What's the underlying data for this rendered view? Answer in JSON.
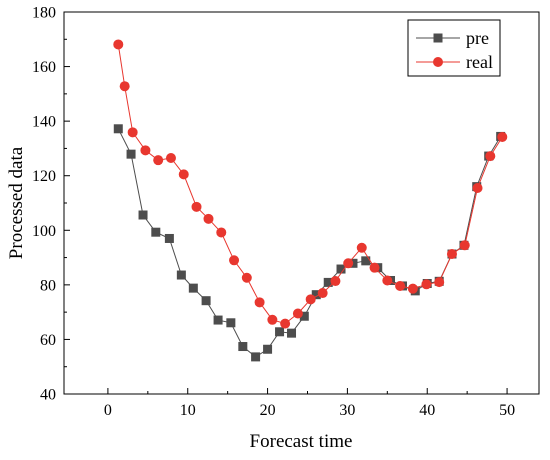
{
  "chart_data": {
    "type": "line",
    "xlabel": "Forecast time",
    "ylabel": "Processed data",
    "xlim": [
      -5.5,
      54
    ],
    "ylim": [
      40,
      180
    ],
    "x_ticks": [
      0,
      10,
      20,
      30,
      40,
      50
    ],
    "y_ticks": [
      40,
      60,
      80,
      100,
      120,
      140,
      160,
      180
    ],
    "grid": false,
    "legend_position": "top-right",
    "series": [
      {
        "name": "pre",
        "color": "#4d4d4d",
        "marker": "square",
        "x": [
          1.3,
          2.9,
          4.4,
          6.0,
          7.7,
          9.2,
          10.7,
          12.3,
          13.8,
          15.4,
          16.9,
          18.5,
          20.0,
          21.5,
          23.0,
          24.6,
          26.1,
          27.6,
          29.2,
          30.7,
          32.3,
          33.8,
          35.4,
          36.9,
          38.5,
          40.0,
          41.5,
          43.1,
          44.6,
          46.2,
          47.7,
          49.2
        ],
        "values": [
          137.2,
          127.9,
          105.6,
          99.3,
          97.0,
          83.6,
          78.8,
          74.2,
          67.1,
          66.1,
          57.4,
          53.6,
          56.4,
          62.8,
          62.3,
          68.5,
          76.4,
          80.9,
          85.8,
          87.9,
          88.8,
          86.3,
          81.6,
          79.6,
          77.8,
          80.5,
          81.3,
          91.3,
          94.5,
          116.0,
          127.2,
          134.4
        ]
      },
      {
        "name": "real",
        "color": "#e8372f",
        "marker": "circle",
        "x": [
          1.3,
          2.1,
          3.1,
          4.7,
          6.3,
          7.9,
          9.5,
          11.1,
          12.6,
          14.2,
          15.8,
          17.4,
          19.0,
          20.6,
          22.2,
          23.8,
          25.4,
          26.9,
          28.5,
          30.1,
          31.8,
          33.4,
          35.0,
          36.6,
          38.2,
          39.9,
          41.5,
          43.1,
          44.7,
          46.3,
          47.9,
          49.4
        ],
        "values": [
          168.1,
          152.8,
          135.9,
          129.3,
          125.7,
          126.5,
          120.5,
          108.6,
          104.2,
          99.2,
          89.0,
          82.6,
          73.6,
          67.2,
          65.8,
          69.5,
          74.7,
          77.0,
          81.4,
          87.9,
          93.6,
          86.3,
          81.6,
          79.6,
          78.6,
          80.2,
          81.0,
          91.3,
          94.5,
          115.5,
          127.2,
          134.2
        ]
      }
    ]
  }
}
